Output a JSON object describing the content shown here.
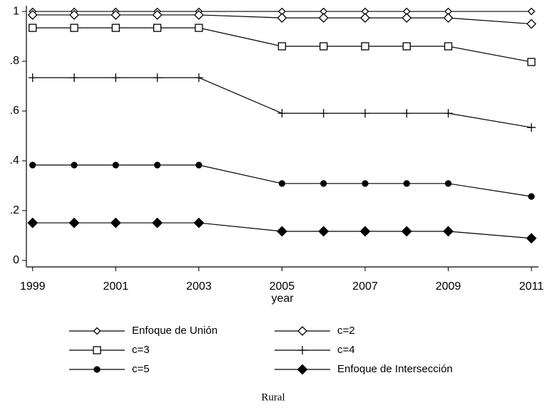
{
  "chart_data": {
    "type": "line",
    "x": [
      1999,
      2000,
      2001,
      2002,
      2003,
      2005,
      2006,
      2007,
      2008,
      2009,
      2011
    ],
    "xlabel": "year",
    "caption": "Rural",
    "xlim": [
      1998.85,
      2011.17
    ],
    "xticks": [
      1999,
      2001,
      2003,
      2005,
      2007,
      2009,
      2011
    ],
    "ylim": [
      -0.026,
      1.023
    ],
    "yticks": [
      0,
      {
        "value": 0.2,
        "label": ".2"
      },
      {
        "value": 0.4,
        "label": ".4"
      },
      {
        "value": 0.6,
        "label": ".6"
      },
      {
        "value": 0.8,
        "label": ".8"
      },
      1
    ],
    "grid": false,
    "series": [
      {
        "name": "Enfoque de Unión",
        "color": "#000000",
        "marker": "diamond-hollow-small",
        "values": [
          1,
          1,
          1,
          1,
          1,
          1,
          1,
          1,
          1,
          1,
          1
        ]
      },
      {
        "name": "c=2",
        "color": "#000000",
        "marker": "diamond-hollow",
        "values": [
          0.986,
          0.986,
          0.986,
          0.986,
          0.986,
          0.974,
          0.974,
          0.974,
          0.974,
          0.974,
          0.95
        ]
      },
      {
        "name": "c=3",
        "color": "#000000",
        "marker": "square-hollow",
        "values": [
          0.934,
          0.934,
          0.934,
          0.934,
          0.934,
          0.86,
          0.86,
          0.86,
          0.86,
          0.86,
          0.797
        ]
      },
      {
        "name": "c=4",
        "color": "#000000",
        "marker": "plus",
        "values": [
          0.734,
          0.734,
          0.734,
          0.734,
          0.734,
          0.591,
          0.591,
          0.591,
          0.591,
          0.591,
          0.534
        ]
      },
      {
        "name": "c=5",
        "color": "#000000",
        "marker": "circle",
        "values": [
          0.383,
          0.383,
          0.383,
          0.383,
          0.383,
          0.309,
          0.309,
          0.309,
          0.309,
          0.309,
          0.257
        ]
      },
      {
        "name": "Enfoque de Intersección",
        "color": "#000000",
        "marker": "diamond",
        "values": [
          0.151,
          0.151,
          0.151,
          0.151,
          0.151,
          0.117,
          0.117,
          0.117,
          0.117,
          0.117,
          0.089
        ]
      }
    ]
  }
}
